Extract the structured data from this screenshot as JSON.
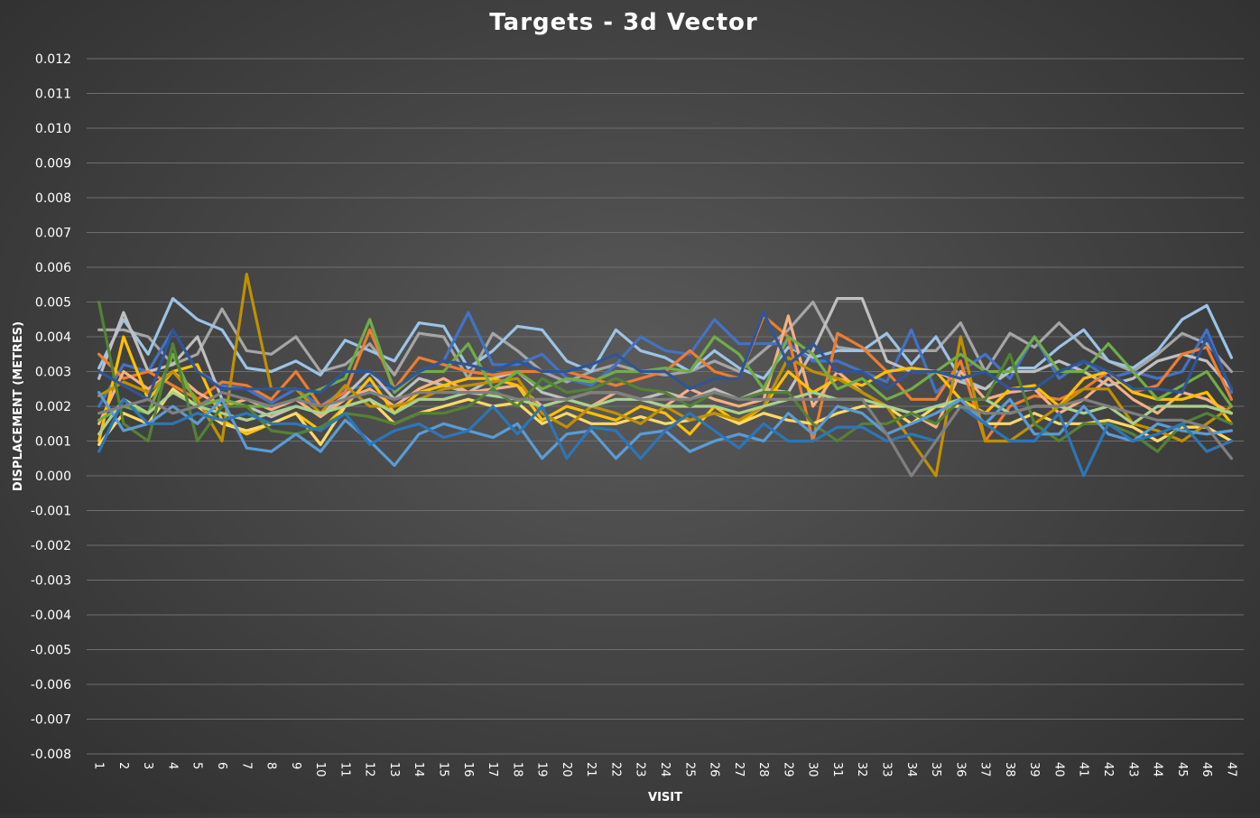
{
  "chart_data": {
    "type": "line",
    "title": "Targets - 3d Vector",
    "xlabel": "VISIT",
    "ylabel": "DISPLACEMENT (METRES)",
    "ylim": [
      -0.008,
      0.012
    ],
    "yticks": [
      "0.012",
      "0.011",
      "0.010",
      "0.009",
      "0.008",
      "0.007",
      "0.006",
      "0.005",
      "0.004",
      "0.003",
      "0.002",
      "0.001",
      "0.000",
      "-0.001",
      "-0.002",
      "-0.003",
      "-0.004",
      "-0.005",
      "-0.006",
      "-0.007",
      "-0.008"
    ],
    "categories": [
      "1",
      "2",
      "3",
      "4",
      "5",
      "6",
      "7",
      "8",
      "9",
      "10",
      "11",
      "12",
      "13",
      "14",
      "15",
      "16",
      "17",
      "18",
      "19",
      "20",
      "21",
      "22",
      "23",
      "24",
      "25",
      "26",
      "27",
      "28",
      "29",
      "30",
      "31",
      "32",
      "33",
      "34",
      "35",
      "36",
      "37",
      "38",
      "39",
      "40",
      "41",
      "42",
      "43",
      "44",
      "45",
      "46",
      "47"
    ],
    "grid": true,
    "legend": "none",
    "series": [
      {
        "color": "#a5a5a5",
        "values": [
          0.0042,
          0.0042,
          0.004,
          0.0032,
          0.0035,
          0.0048,
          0.0036,
          0.0035,
          0.004,
          0.003,
          0.0032,
          0.0038,
          0.0029,
          0.0041,
          0.004,
          0.0028,
          0.0041,
          0.0036,
          0.003,
          0.0027,
          0.003,
          0.0032,
          0.003,
          0.0029,
          0.003,
          0.0033,
          0.003,
          0.0036,
          0.0042,
          0.005,
          0.0037,
          0.0036,
          0.0036,
          0.0036,
          0.0036,
          0.0044,
          0.003,
          0.0041,
          0.0037,
          0.0044,
          0.0037,
          0.0033,
          0.003,
          0.0035,
          0.0041,
          0.0038,
          0.003
        ]
      },
      {
        "color": "#9dc3e6",
        "values": [
          0.0031,
          0.0045,
          0.0035,
          0.0051,
          0.0045,
          0.0042,
          0.0031,
          0.003,
          0.0033,
          0.0029,
          0.0039,
          0.0036,
          0.0033,
          0.0044,
          0.0043,
          0.0031,
          0.0036,
          0.0043,
          0.0042,
          0.0033,
          0.003,
          0.0042,
          0.0036,
          0.0034,
          0.003,
          0.0036,
          0.0031,
          0.0028,
          0.0037,
          0.0034,
          0.0036,
          0.0036,
          0.0041,
          0.0032,
          0.004,
          0.0028,
          0.0025,
          0.0031,
          0.0031,
          0.0037,
          0.0042,
          0.0033,
          0.0031,
          0.0036,
          0.0045,
          0.0049,
          0.0034
        ]
      },
      {
        "color": "#4472c4",
        "values": [
          0.002,
          0.0032,
          0.003,
          0.0042,
          0.003,
          0.0026,
          0.0025,
          0.0021,
          0.0025,
          0.002,
          0.0025,
          0.0026,
          0.0025,
          0.003,
          0.0033,
          0.0047,
          0.0032,
          0.0032,
          0.0035,
          0.0028,
          0.0026,
          0.0032,
          0.004,
          0.0036,
          0.0035,
          0.0045,
          0.0038,
          0.0038,
          0.0038,
          0.0033,
          0.0033,
          0.003,
          0.0027,
          0.0042,
          0.0024,
          0.003,
          0.0035,
          0.0028,
          0.004,
          0.0028,
          0.0033,
          0.0028,
          0.003,
          0.0028,
          0.003,
          0.0042,
          0.0024
        ]
      },
      {
        "color": "#c0c0c0",
        "values": [
          0.0028,
          0.0047,
          0.003,
          0.0032,
          0.004,
          0.0022,
          0.002,
          0.0017,
          0.002,
          0.0018,
          0.0023,
          0.003,
          0.0022,
          0.0028,
          0.0026,
          0.0024,
          0.0028,
          0.003,
          0.0024,
          0.0022,
          0.0024,
          0.0024,
          0.0022,
          0.0024,
          0.0022,
          0.0025,
          0.0022,
          0.0025,
          0.0024,
          0.0036,
          0.0051,
          0.0051,
          0.0033,
          0.003,
          0.003,
          0.0027,
          0.0025,
          0.003,
          0.003,
          0.0033,
          0.003,
          0.0026,
          0.0028,
          0.0033,
          0.0035,
          0.0033,
          0.0025
        ]
      },
      {
        "color": "#ed7d31",
        "values": [
          0.0035,
          0.0028,
          0.003,
          0.0026,
          0.0022,
          0.0027,
          0.0026,
          0.0022,
          0.003,
          0.002,
          0.0024,
          0.0042,
          0.0025,
          0.0034,
          0.0032,
          0.003,
          0.0029,
          0.003,
          0.003,
          0.003,
          0.0028,
          0.0026,
          0.0028,
          0.003,
          0.0036,
          0.003,
          0.0028,
          0.0046,
          0.004,
          0.001,
          0.0041,
          0.0037,
          0.003,
          0.0022,
          0.0022,
          0.0033,
          0.001,
          0.002,
          0.0023,
          0.0022,
          0.0025,
          0.003,
          0.0024,
          0.0026,
          0.0035,
          0.0037,
          0.0022
        ]
      },
      {
        "color": "#f4b183",
        "values": [
          0.0015,
          0.003,
          0.0025,
          0.003,
          0.0024,
          0.002,
          0.0022,
          0.0019,
          0.0022,
          0.0017,
          0.0022,
          0.0025,
          0.002,
          0.0025,
          0.0028,
          0.0024,
          0.0025,
          0.0026,
          0.002,
          0.0022,
          0.002,
          0.0024,
          0.0022,
          0.002,
          0.0025,
          0.0022,
          0.002,
          0.0022,
          0.0046,
          0.002,
          0.003,
          0.0024,
          0.002,
          0.0018,
          0.0014,
          0.003,
          0.0022,
          0.0024,
          0.0025,
          0.0018,
          0.0022,
          0.0028,
          0.0022,
          0.0018,
          0.0024,
          0.0022,
          0.0018
        ]
      },
      {
        "color": "#ffc000",
        "values": [
          0.001,
          0.004,
          0.0022,
          0.003,
          0.0032,
          0.0016,
          0.0012,
          0.0015,
          0.0018,
          0.0013,
          0.002,
          0.0028,
          0.0018,
          0.0024,
          0.0026,
          0.0028,
          0.0028,
          0.0026,
          0.0016,
          0.002,
          0.0018,
          0.0016,
          0.002,
          0.0018,
          0.0012,
          0.002,
          0.0015,
          0.002,
          0.003,
          0.0024,
          0.0028,
          0.0026,
          0.003,
          0.0031,
          0.003,
          0.0022,
          0.0018,
          0.0025,
          0.0026,
          0.002,
          0.0028,
          0.003,
          0.0024,
          0.0022,
          0.0022,
          0.0024,
          0.0015
        ]
      },
      {
        "color": "#ffd966",
        "values": [
          0.0009,
          0.0018,
          0.0015,
          0.0025,
          0.002,
          0.0015,
          0.0013,
          0.0015,
          0.0018,
          0.0009,
          0.002,
          0.0022,
          0.0015,
          0.0018,
          0.002,
          0.0022,
          0.002,
          0.0021,
          0.0015,
          0.0018,
          0.0015,
          0.0015,
          0.0017,
          0.0015,
          0.0016,
          0.0018,
          0.0015,
          0.0018,
          0.0016,
          0.0015,
          0.0018,
          0.002,
          0.002,
          0.0015,
          0.002,
          0.002,
          0.0015,
          0.0015,
          0.0018,
          0.0015,
          0.0015,
          0.0016,
          0.0014,
          0.001,
          0.0014,
          0.0014,
          0.001
        ]
      },
      {
        "color": "#bf9000",
        "values": [
          0.0023,
          0.0027,
          0.0024,
          0.003,
          0.0022,
          0.001,
          0.0058,
          0.0025,
          0.0025,
          0.0018,
          0.0026,
          0.002,
          0.002,
          0.0022,
          0.0025,
          0.0026,
          0.0027,
          0.0028,
          0.0018,
          0.0014,
          0.002,
          0.0018,
          0.0015,
          0.002,
          0.0016,
          0.0018,
          0.0016,
          0.002,
          0.0034,
          0.003,
          0.0028,
          0.0024,
          0.002,
          0.001,
          0.0,
          0.004,
          0.001,
          0.001,
          0.0015,
          0.002,
          0.0025,
          0.0025,
          0.0015,
          0.0013,
          0.001,
          0.0015,
          0.002
        ]
      },
      {
        "color": "#70ad47",
        "values": [
          0.0016,
          0.002,
          0.0018,
          0.0035,
          0.002,
          0.0022,
          0.002,
          0.002,
          0.0022,
          0.0025,
          0.0028,
          0.0045,
          0.0024,
          0.003,
          0.003,
          0.0038,
          0.0025,
          0.003,
          0.0025,
          0.0028,
          0.0027,
          0.003,
          0.003,
          0.0031,
          0.003,
          0.004,
          0.0035,
          0.0025,
          0.004,
          0.0035,
          0.0025,
          0.0028,
          0.0022,
          0.0025,
          0.003,
          0.0035,
          0.003,
          0.003,
          0.004,
          0.003,
          0.003,
          0.0038,
          0.003,
          0.0022,
          0.0026,
          0.003,
          0.002
        ]
      },
      {
        "color": "#a9d18e",
        "values": [
          0.0012,
          0.0022,
          0.0018,
          0.0024,
          0.002,
          0.0018,
          0.0016,
          0.0018,
          0.002,
          0.0018,
          0.002,
          0.0022,
          0.0018,
          0.0022,
          0.0022,
          0.0024,
          0.0023,
          0.0022,
          0.002,
          0.0022,
          0.002,
          0.0022,
          0.0022,
          0.002,
          0.002,
          0.002,
          0.0018,
          0.002,
          0.0022,
          0.0024,
          0.0022,
          0.0022,
          0.002,
          0.0018,
          0.002,
          0.0022,
          0.0022,
          0.0018,
          0.002,
          0.002,
          0.0018,
          0.002,
          0.0015,
          0.002,
          0.002,
          0.002,
          0.0018
        ]
      },
      {
        "color": "#548235",
        "values": [
          0.005,
          0.0015,
          0.001,
          0.0038,
          0.001,
          0.002,
          0.002,
          0.0013,
          0.0012,
          0.0014,
          0.0018,
          0.0017,
          0.0015,
          0.0018,
          0.0018,
          0.002,
          0.0025,
          0.002,
          0.0028,
          0.0024,
          0.0025,
          0.0028,
          0.0025,
          0.0024,
          0.002,
          0.0024,
          0.0022,
          0.0024,
          0.0024,
          0.0015,
          0.001,
          0.0015,
          0.0015,
          0.0018,
          0.0015,
          0.0022,
          0.0022,
          0.0035,
          0.0015,
          0.001,
          0.0015,
          0.0015,
          0.0012,
          0.0007,
          0.0015,
          0.0018,
          0.0015
        ]
      },
      {
        "color": "#5b9bd5",
        "values": [
          0.0024,
          0.0013,
          0.0015,
          0.002,
          0.0015,
          0.0022,
          0.0008,
          0.0007,
          0.0012,
          0.0007,
          0.0016,
          0.001,
          0.0003,
          0.0012,
          0.0015,
          0.0013,
          0.0011,
          0.0015,
          0.0005,
          0.0012,
          0.0013,
          0.0005,
          0.0012,
          0.0013,
          0.0007,
          0.001,
          0.0012,
          0.001,
          0.0018,
          0.0012,
          0.002,
          0.0018,
          0.0012,
          0.0015,
          0.0018,
          0.0022,
          0.0015,
          0.0022,
          0.0012,
          0.0012,
          0.002,
          0.0012,
          0.001,
          0.0015,
          0.0013,
          0.0012,
          0.0013
        ]
      },
      {
        "color": "#2e75b6",
        "values": [
          0.0007,
          0.0022,
          0.0015,
          0.0015,
          0.0018,
          0.0016,
          0.0018,
          0.0015,
          0.0015,
          0.0013,
          0.0018,
          0.0009,
          0.0013,
          0.0015,
          0.0011,
          0.0013,
          0.002,
          0.0012,
          0.002,
          0.0005,
          0.0014,
          0.0013,
          0.0005,
          0.0013,
          0.0018,
          0.0013,
          0.0008,
          0.0015,
          0.001,
          0.001,
          0.0014,
          0.0014,
          0.001,
          0.0012,
          0.001,
          0.002,
          0.0015,
          0.001,
          0.001,
          0.0018,
          0.0,
          0.0015,
          0.001,
          0.0012,
          0.0015,
          0.0007,
          0.001
        ]
      },
      {
        "color": "#2f5597",
        "values": [
          0.003,
          0.0026,
          0.0022,
          0.0042,
          0.003,
          0.0025,
          0.0025,
          0.0025,
          0.0025,
          0.0024,
          0.003,
          0.003,
          0.0025,
          0.003,
          0.0033,
          0.0032,
          0.003,
          0.0033,
          0.003,
          0.003,
          0.0032,
          0.0035,
          0.003,
          0.003,
          0.0025,
          0.0028,
          0.0028,
          0.0047,
          0.0032,
          0.0038,
          0.003,
          0.003,
          0.0025,
          0.003,
          0.003,
          0.0028,
          0.003,
          0.0025,
          0.0025,
          0.003,
          0.0033,
          0.003,
          0.0025,
          0.0025,
          0.0024,
          0.004,
          0.0025
        ]
      },
      {
        "color": "#7f7f7f",
        "values": [
          0.0018,
          0.002,
          0.0022,
          0.0018,
          0.002,
          0.0024,
          0.0022,
          0.002,
          0.0022,
          0.002,
          0.0022,
          0.0024,
          0.0022,
          0.0024,
          0.0024,
          0.0024,
          0.0024,
          0.0022,
          0.0022,
          0.0022,
          0.0024,
          0.0024,
          0.0022,
          0.0022,
          0.0022,
          0.0024,
          0.0022,
          0.0022,
          0.0022,
          0.0022,
          0.0022,
          0.0022,
          0.0012,
          0.0,
          0.001,
          0.002,
          0.0018,
          0.0018,
          0.002,
          0.002,
          0.0022,
          0.002,
          0.0018,
          0.0016,
          0.0016,
          0.0014,
          0.0005
        ]
      }
    ]
  }
}
